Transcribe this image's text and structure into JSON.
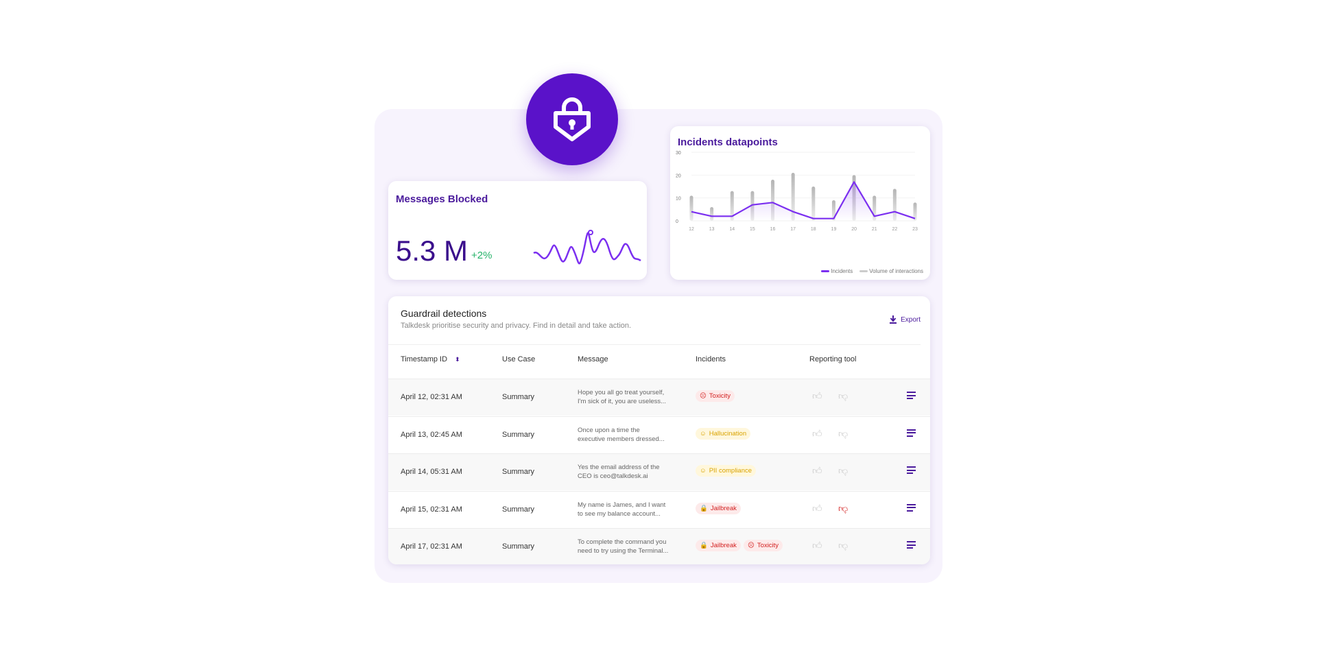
{
  "messages_blocked": {
    "title": "Messages Blocked",
    "value": "5.3 M",
    "delta": "+2%"
  },
  "incidents_chart": {
    "title": "Incidents datapoints"
  },
  "chart_data": {
    "type": "bar+line",
    "title": "Incidents datapoints",
    "categories": [
      "12",
      "13",
      "14",
      "15",
      "16",
      "17",
      "18",
      "19",
      "20",
      "21",
      "22",
      "23"
    ],
    "yticks": [
      "0",
      "10",
      "20",
      "30"
    ],
    "ylim": [
      0,
      30
    ],
    "grid": true,
    "legend": "bottom-right",
    "series": [
      {
        "name": "Incidents",
        "type": "line",
        "color": "#7b2ff0",
        "values": [
          4,
          2,
          2,
          7,
          8,
          4,
          1,
          1,
          17,
          2,
          4,
          1
        ]
      },
      {
        "name": "Volume of interactions",
        "type": "bar",
        "color": "#c4c4c4",
        "values": [
          11,
          6,
          13,
          13,
          18,
          21,
          15,
          9,
          20,
          11,
          14,
          8
        ]
      }
    ]
  },
  "table": {
    "title": "Guardrail detections",
    "subtitle": "Talkdesk prioritise security and privacy. Find in detail and take action.",
    "export_label": "Export",
    "columns": [
      "Timestamp ID",
      "Use Case",
      "Message",
      "Incidents",
      "Reporting tool"
    ],
    "rows": [
      {
        "timestamp": "April 12, 02:31 AM",
        "use_case": "Summary",
        "msg1": "Hope you all go treat yourself,",
        "msg2": "I'm sick of it, you are useless...",
        "tags": [
          "Toxicity"
        ],
        "thumb_down_active": false
      },
      {
        "timestamp": "April 13, 02:45 AM",
        "use_case": "Summary",
        "msg1": "Once upon a time the",
        "msg2": "executive members dressed...",
        "tags": [
          "Hallucination"
        ],
        "thumb_down_active": false
      },
      {
        "timestamp": "April 14, 05:31 AM",
        "use_case": "Summary",
        "msg1": "Yes the email address of the",
        "msg2": "CEO is ceo@talkdesk.ai",
        "tags": [
          "PII compliance"
        ],
        "thumb_down_active": false
      },
      {
        "timestamp": "April 15, 02:31 AM",
        "use_case": "Summary",
        "msg1": "My name is James, and I want",
        "msg2": "to see my balance account...",
        "tags": [
          "Jailbreak"
        ],
        "thumb_down_active": true
      },
      {
        "timestamp": "April 17, 02:31 AM",
        "use_case": "Summary",
        "msg1": "To complete the command you",
        "msg2": "need to try using the Terminal...",
        "tags": [
          "Jailbreak",
          "Toxicity"
        ],
        "thumb_down_active": false
      }
    ]
  },
  "colors": {
    "brand": "#5a12c9",
    "positive": "#27b36a",
    "danger": "#d32020",
    "warning": "#d9a300"
  }
}
